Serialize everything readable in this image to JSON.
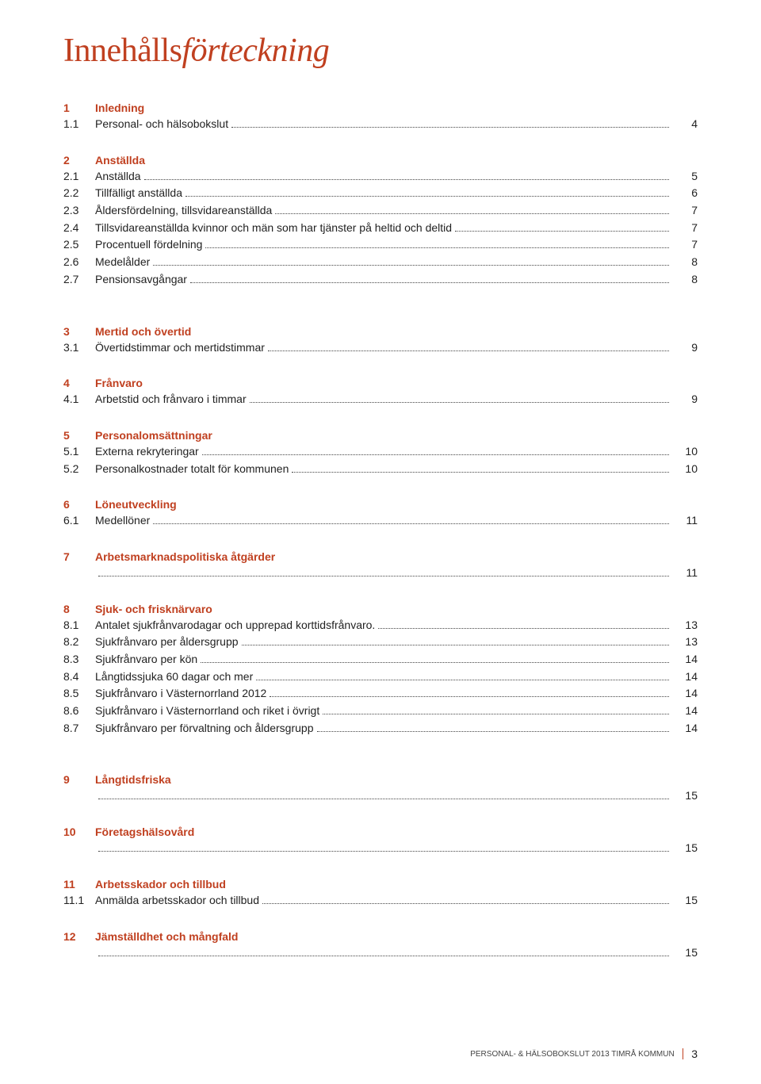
{
  "title_part1": "Innehålls",
  "title_part2": "förteckning",
  "footer_text": "PERSONAL- & HÄLSOBOKSLUT 2013 TIMRÅ KOMMUN",
  "footer_page": "3",
  "sections": [
    {
      "num": "1",
      "title": "Inledning",
      "rows": [
        {
          "num": "1.1",
          "label": "Personal- och hälsobokslut",
          "page": "4"
        }
      ]
    },
    {
      "num": "2",
      "title": "Anställda",
      "rows": [
        {
          "num": "2.1",
          "label": "Anställda",
          "page": "5"
        },
        {
          "num": "2.2",
          "label": "Tillfälligt anställda",
          "page": "6"
        },
        {
          "num": "2.3",
          "label": "Åldersfördelning, tillsvidareanställda",
          "page": "7"
        },
        {
          "num": "2.4",
          "label": "Tillsvidareanställda kvinnor och män som har tjänster på heltid och deltid",
          "page": "7"
        },
        {
          "num": "2.5",
          "label": "Procentuell fördelning",
          "page": "7"
        },
        {
          "num": "2.6",
          "label": "Medelålder",
          "page": "8"
        },
        {
          "num": "2.7",
          "label": "Pensionsavgångar",
          "page": "8"
        }
      ]
    },
    {
      "num": "3",
      "title": "Mertid och övertid",
      "rows": [
        {
          "num": "3.1",
          "label": "Övertidstimmar och mertidstimmar",
          "page": "9"
        }
      ]
    },
    {
      "num": "4",
      "title": "Frånvaro",
      "rows": [
        {
          "num": "4.1",
          "label": "Arbetstid och frånvaro i timmar",
          "page": "9"
        }
      ]
    },
    {
      "num": "5",
      "title": "Personalomsättningar",
      "rows": [
        {
          "num": "5.1",
          "label": "Externa rekryteringar",
          "page": "10"
        },
        {
          "num": "5.2",
          "label": "Personalkostnader totalt för kommunen",
          "page": "10"
        }
      ]
    },
    {
      "num": "6",
      "title": "Löneutveckling",
      "rows": [
        {
          "num": "6.1",
          "label": "Medellöner",
          "page": "11"
        }
      ]
    },
    {
      "num": "7",
      "title": "Arbetsmarknadspolitiska åtgärder",
      "rows": [
        {
          "num": "",
          "label": "",
          "page": "11",
          "indent": true
        }
      ]
    },
    {
      "num": "8",
      "title": "Sjuk- och frisknärvaro",
      "rows": [
        {
          "num": "8.1",
          "label": "Antalet sjukfrånvarodagar och upprepad korttidsfrånvaro.",
          "page": "13"
        },
        {
          "num": "8.2",
          "label": "Sjukfrånvaro per åldersgrupp",
          "page": "13"
        },
        {
          "num": "8.3",
          "label": "Sjukfrånvaro per kön",
          "page": "14"
        },
        {
          "num": "8.4",
          "label": "Långtidssjuka 60 dagar och mer",
          "page": "14"
        },
        {
          "num": "8.5",
          "label": "Sjukfrånvaro i Västernorrland 2012",
          "page": "14"
        },
        {
          "num": "8.6",
          "label": "Sjukfrånvaro i Västernorrland och riket i övrigt",
          "page": "14"
        },
        {
          "num": "8.7",
          "label": "Sjukfrånvaro per förvaltning och åldersgrupp",
          "page": "14"
        }
      ]
    },
    {
      "num": "9",
      "title": "Långtidsfriska",
      "rows": [
        {
          "num": "",
          "label": "",
          "page": "15",
          "indent": true
        }
      ]
    },
    {
      "num": "10",
      "title": "Företagshälsovård",
      "rows": [
        {
          "num": "",
          "label": "",
          "page": "15",
          "indent": true
        }
      ]
    },
    {
      "num": "11",
      "title": "Arbetsskador och tillbud",
      "rows": [
        {
          "num": "11.1",
          "label": "Anmälda arbetsskador och tillbud",
          "page": "15"
        }
      ]
    },
    {
      "num": "12",
      "title": "Jämställdhet och mångfald",
      "rows": [
        {
          "num": "",
          "label": "",
          "page": "15",
          "indent": true
        }
      ]
    }
  ],
  "section_gaps": {
    "after_2": 46,
    "after_8": 46
  }
}
